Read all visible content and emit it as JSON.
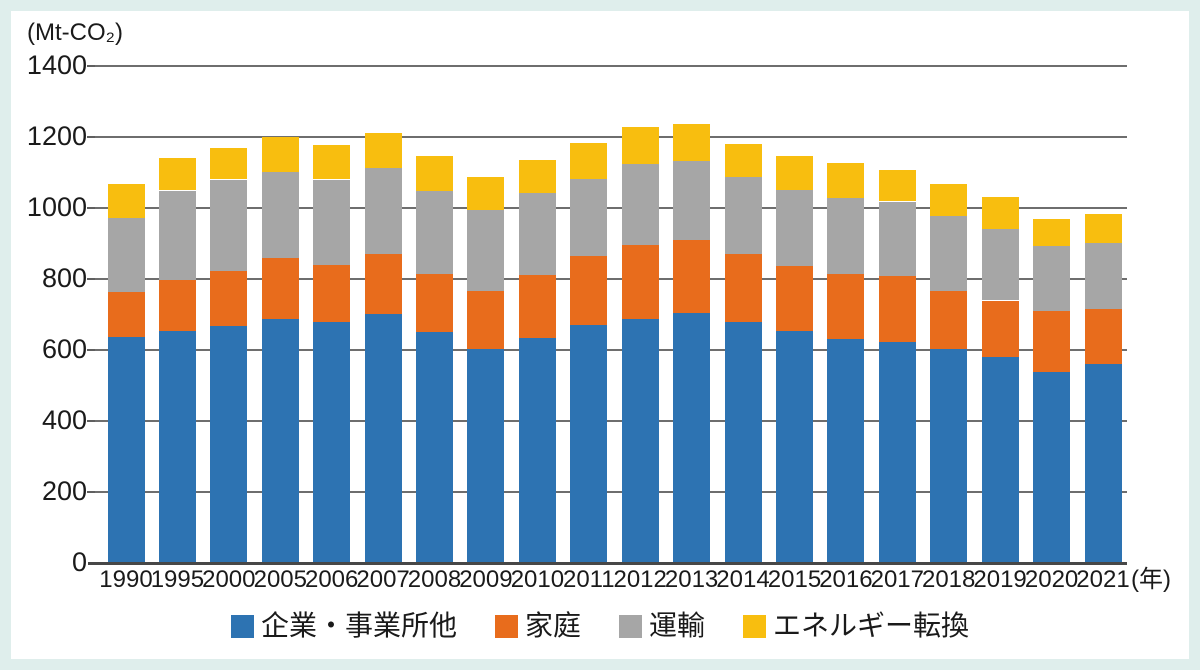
{
  "colors": {
    "frame_border": "#dfeeec",
    "background": "#ffffff",
    "gridline": "#6e6e6e",
    "axis": "#474747",
    "text": "#1a1a1a"
  },
  "chart_data": {
    "type": "bar",
    "stacked": true,
    "unit_label": "(Mt-CO₂)",
    "x_axis_suffix": "(年)",
    "ylim": [
      0,
      1400
    ],
    "ytick_step": 200,
    "yticks": [
      0,
      200,
      400,
      600,
      800,
      1000,
      1200,
      1400
    ],
    "grid": true,
    "legend_position": "bottom",
    "categories": [
      "1990",
      "1995",
      "2000",
      "2005",
      "2006",
      "2007",
      "2008",
      "2009",
      "2010",
      "2011",
      "2012",
      "2013",
      "2014",
      "2015",
      "2016",
      "2017",
      "2018",
      "2019",
      "2020",
      "2021"
    ],
    "series": [
      {
        "name": "企業・事業所他",
        "color": "#2d73b2",
        "values": [
          634,
          651,
          665,
          687,
          678,
          699,
          650,
          602,
          633,
          669,
          686,
          703,
          678,
          651,
          630,
          622,
          601,
          578,
          537,
          560
        ]
      },
      {
        "name": "家庭",
        "color": "#e86c1c",
        "values": [
          129,
          146,
          155,
          170,
          160,
          171,
          163,
          162,
          176,
          195,
          208,
          205,
          190,
          184,
          183,
          186,
          163,
          160,
          171,
          153
        ]
      },
      {
        "name": "運輸",
        "color": "#a6a6a6",
        "values": [
          208,
          251,
          259,
          244,
          241,
          241,
          234,
          230,
          232,
          217,
          229,
          223,
          219,
          215,
          215,
          209,
          211,
          202,
          184,
          186
        ]
      },
      {
        "name": "エネルギー転換",
        "color": "#f8be0f",
        "values": [
          95,
          91,
          90,
          97,
          96,
          100,
          97,
          93,
          92,
          102,
          103,
          104,
          93,
          94,
          98,
          90,
          92,
          89,
          76,
          83
        ]
      }
    ]
  }
}
